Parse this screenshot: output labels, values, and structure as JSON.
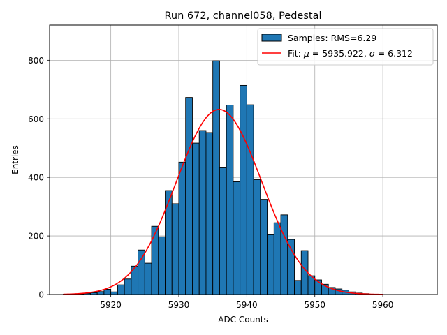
{
  "chart_data": {
    "type": "bar",
    "title": "Run 672, channel058, Pedestal",
    "xlabel": "ADC Counts",
    "ylabel": "Entries",
    "xlim": [
      5911,
      5968
    ],
    "ylim": [
      0,
      920
    ],
    "xticks": [
      5920,
      5930,
      5940,
      5950,
      5960
    ],
    "yticks": [
      0,
      200,
      400,
      600,
      800
    ],
    "grid": true,
    "bin_width": 1,
    "bins_start": [
      5913,
      5914,
      5915,
      5916,
      5917,
      5918,
      5919,
      5920,
      5921,
      5922,
      5923,
      5924,
      5925,
      5926,
      5927,
      5928,
      5929,
      5930,
      5931,
      5932,
      5933,
      5934,
      5935,
      5936,
      5937,
      5938,
      5939,
      5940,
      5941,
      5942,
      5943,
      5944,
      5945,
      5946,
      5947,
      5948,
      5949,
      5950,
      5951,
      5952,
      5953,
      5954,
      5955,
      5956,
      5957,
      5958,
      5959
    ],
    "counts": [
      1,
      1,
      2,
      4,
      6,
      10,
      18,
      9,
      33,
      53,
      97,
      152,
      107,
      233,
      197,
      355,
      310,
      452,
      673,
      517,
      560,
      553,
      798,
      435,
      647,
      385,
      714,
      648,
      392,
      325,
      204,
      245,
      272,
      188,
      48,
      150,
      64,
      50,
      35,
      24,
      19,
      15,
      9,
      5,
      3,
      1,
      1
    ],
    "series": [
      {
        "name": "Samples: RMS=6.29",
        "kind": "histogram",
        "color": "#1f77b4",
        "edgecolor": "#000000"
      },
      {
        "name": "Fit: μ = 5935.922, σ = 6.312",
        "kind": "line",
        "color": "#ff0000",
        "mu": 5935.922,
        "sigma": 6.312,
        "amplitude": 632,
        "x_range": [
          5913,
          5960
        ]
      }
    ],
    "legend": {
      "location": "upper right",
      "entries": [
        {
          "prefix": "Samples: RMS=6.29",
          "parts": []
        },
        {
          "prefix": "Fit: ",
          "parts": [
            {
              "t": "μ",
              "italic": true
            },
            {
              "t": " = 5935.922, ",
              "italic": false
            },
            {
              "t": "σ",
              "italic": true
            },
            {
              "t": " = 6.312",
              "italic": false
            }
          ]
        }
      ]
    }
  }
}
